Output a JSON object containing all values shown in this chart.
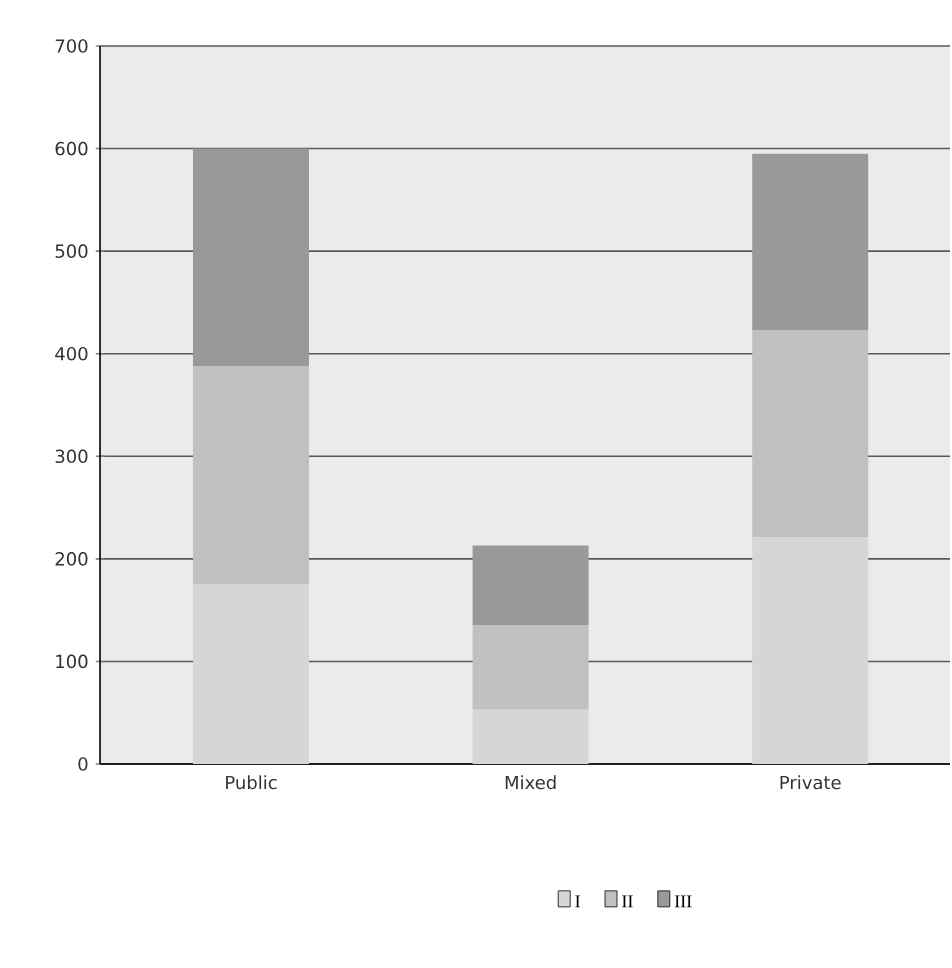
{
  "chart_data": {
    "type": "bar",
    "stacked": true,
    "categories": [
      "Public",
      "Mixed",
      "Private"
    ],
    "series": [
      {
        "name": "I",
        "color": "#d6d6d6",
        "values": [
          175,
          53,
          221
        ]
      },
      {
        "name": "II",
        "color": "#c0c0c0",
        "values": [
          213,
          82,
          202
        ]
      },
      {
        "name": "III",
        "color": "#999999",
        "values": [
          212,
          78,
          172
        ]
      }
    ],
    "ylim": [
      0,
      700
    ],
    "yticks": [
      0,
      100,
      200,
      300,
      400,
      500,
      600,
      700
    ],
    "grid": "y",
    "legend": "bottom"
  }
}
